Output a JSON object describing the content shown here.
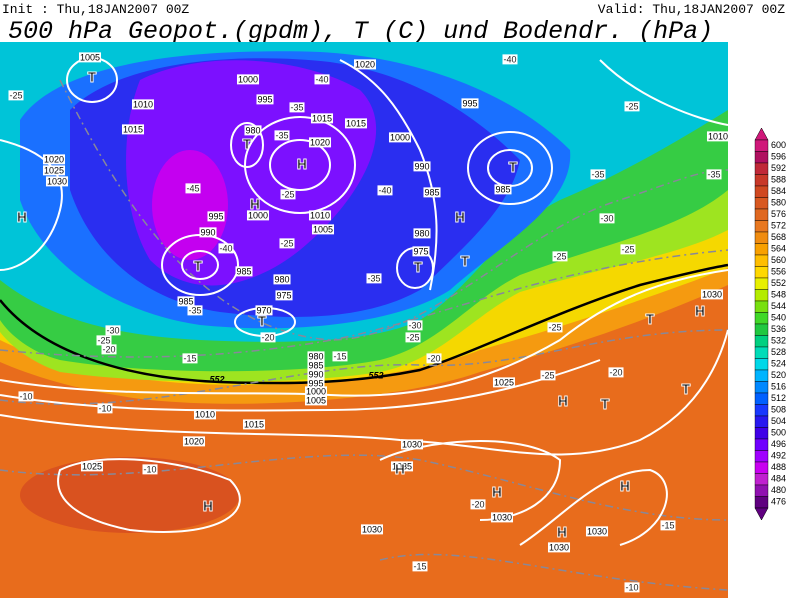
{
  "header": {
    "init": "Init : Thu,18JAN2007 00Z",
    "valid": "Valid: Thu,18JAN2007 00Z",
    "title": "500 hPa Geopot.(gpdm), T (C) und Bodendr. (hPa)"
  },
  "map": {
    "pressure_centers": [
      "T",
      "T",
      "H",
      "H",
      "T",
      "T",
      "T",
      "T",
      "H",
      "T",
      "H",
      "H",
      "H",
      "H",
      "H",
      "T",
      "H",
      "H",
      "T",
      "H",
      "T"
    ],
    "isobar_labels": [
      1005,
      1000,
      995,
      1010,
      1015,
      1020,
      1025,
      1030,
      980,
      1015,
      1015,
      1020,
      1000,
      990,
      985,
      995,
      985,
      995,
      1000,
      1010,
      1005,
      980,
      975,
      990,
      985,
      980,
      975,
      985,
      970,
      1020,
      1010,
      1015,
      1020,
      1025,
      1030,
      1035,
      1025,
      1030,
      1030,
      1030,
      1030,
      1030,
      1010,
      980,
      985,
      990,
      995,
      1000,
      1005
    ],
    "temperature_labels": [
      -40,
      -35,
      -35,
      -45,
      -40,
      -35,
      -30,
      -25,
      -20,
      -15,
      -10,
      -10,
      -10,
      -25,
      -25,
      -35,
      -35,
      -30,
      -25,
      -25,
      -25,
      -25,
      -20,
      -20,
      -15,
      -15,
      -10,
      -40,
      -40,
      -35,
      -30,
      -25,
      -20,
      -25,
      -25,
      -15,
      -20
    ],
    "geopotential_labels": [
      552,
      552
    ]
  },
  "colorbar": {
    "labels": [
      600,
      596,
      592,
      588,
      584,
      580,
      576,
      572,
      568,
      564,
      560,
      556,
      552,
      548,
      544,
      540,
      536,
      532,
      528,
      524,
      520,
      516,
      512,
      508,
      504,
      500,
      496,
      492,
      488,
      484,
      480,
      476
    ],
    "colors": [
      "#d0187a",
      "#b01060",
      "#c02838",
      "#c83828",
      "#d04820",
      "#d85820",
      "#e06820",
      "#e87820",
      "#f08c10",
      "#f8a000",
      "#ffbe00",
      "#ffd800",
      "#e8f000",
      "#b4ec00",
      "#78e010",
      "#40d828",
      "#20c840",
      "#00d080",
      "#00dcb8",
      "#00d8e8",
      "#00b4ff",
      "#0088ff",
      "#0060ff",
      "#1838ff",
      "#2818f0",
      "#4000e8",
      "#7000ff",
      "#a000ff",
      "#c800f0",
      "#c020d0",
      "#9010b0",
      "#600080"
    ]
  }
}
